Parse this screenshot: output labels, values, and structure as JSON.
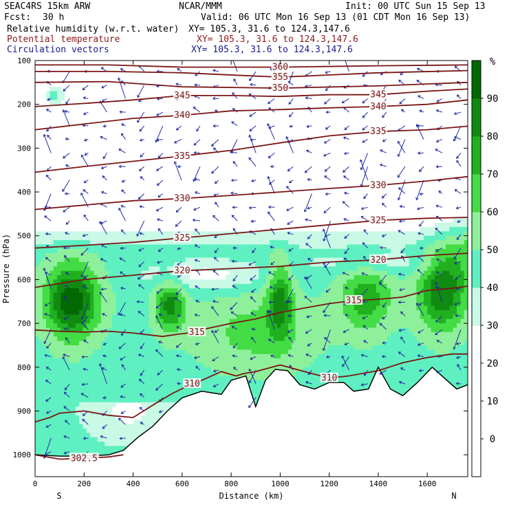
{
  "header": {
    "model": "SEAC4RS 15km ARW",
    "org": "NCAR/MMM",
    "init": "Init: 00 UTC Sun 15 Sep 13",
    "fcst_label": "Fcst:",
    "fcst_value": "30 h",
    "valid": "Valid: 06 UTC Mon 16 Sep 13 (01 CDT Mon 16 Sep 13)",
    "fields": [
      {
        "name": "Relative humidity (w.r.t. water)",
        "xy": "XY= 105.3, 31.6 to 124.3,147.6",
        "color": "#000000"
      },
      {
        "name": "Potential temperature",
        "xy": "XY= 105.3, 31.6 to 124.3,147.6",
        "color": "#8b1a1a"
      },
      {
        "name": "Circulation vectors",
        "xy": "XY= 105.3, 31.6 to 124.3,147.6",
        "color": "#1a1a8b"
      }
    ]
  },
  "colors": {
    "theta": "#7a1414",
    "vector": "#1f2aa0",
    "rh": [
      "#ffffff",
      "#ffffff",
      "#ffffff",
      "#ffffff",
      "#c8fae6",
      "#5ef0c0",
      "#8ef09a",
      "#44dc44",
      "#20b020",
      "#108a10",
      "#036903"
    ]
  },
  "chart_data": {
    "type": "heatmap",
    "subtype": "vertical cross-section with contours and vectors",
    "xlabel": "Distance (km)",
    "ylabel": "Pressure (hPa)",
    "x_ticks": [
      0,
      200,
      400,
      600,
      800,
      1000,
      1200,
      1400,
      1600
    ],
    "y_ticks": [
      100,
      200,
      300,
      400,
      500,
      600,
      700,
      800,
      900,
      1000
    ],
    "xlim": [
      0,
      1765
    ],
    "ylim": [
      100,
      1050
    ],
    "y_scale": "linear, inverted",
    "x_end_labels": {
      "left": "S",
      "right": "N"
    },
    "colorbar": {
      "unit": "%",
      "ticks": [
        0,
        10,
        20,
        30,
        40,
        50,
        60,
        70,
        80,
        90
      ],
      "levels": [
        -10,
        0,
        10,
        20,
        30,
        40,
        50,
        60,
        70,
        80,
        90,
        100
      ]
    },
    "theta_contours": [
      {
        "value": 360,
        "points": [
          [
            0,
            110
          ],
          [
            300,
            110
          ],
          [
            600,
            115
          ],
          [
            1000,
            115
          ],
          [
            1400,
            112
          ],
          [
            1765,
            110
          ]
        ]
      },
      {
        "value": 355,
        "points": [
          [
            0,
            125
          ],
          [
            300,
            125
          ],
          [
            600,
            128
          ],
          [
            1000,
            138
          ],
          [
            1400,
            128
          ],
          [
            1765,
            123
          ]
        ]
      },
      {
        "value": 350,
        "points": [
          [
            0,
            150
          ],
          [
            300,
            148
          ],
          [
            600,
            160
          ],
          [
            1000,
            163
          ],
          [
            1400,
            158
          ],
          [
            1765,
            150
          ]
        ]
      },
      {
        "value": 345,
        "points": [
          [
            0,
            205
          ],
          [
            200,
            198
          ],
          [
            400,
            190
          ],
          [
            600,
            180
          ],
          [
            800,
            180
          ],
          [
            1000,
            182
          ],
          [
            1200,
            178
          ],
          [
            1400,
            178
          ],
          [
            1600,
            170
          ],
          [
            1765,
            165
          ]
        ]
      },
      {
        "value": 340,
        "points": [
          [
            0,
            258
          ],
          [
            200,
            245
          ],
          [
            400,
            232
          ],
          [
            600,
            225
          ],
          [
            800,
            215
          ],
          [
            1000,
            212
          ],
          [
            1200,
            208
          ],
          [
            1400,
            205
          ],
          [
            1600,
            200
          ],
          [
            1765,
            190
          ]
        ]
      },
      {
        "value": 335,
        "points": [
          [
            0,
            355
          ],
          [
            200,
            342
          ],
          [
            400,
            330
          ],
          [
            600,
            318
          ],
          [
            800,
            305
          ],
          [
            1000,
            288
          ],
          [
            1200,
            272
          ],
          [
            1400,
            262
          ],
          [
            1600,
            258
          ],
          [
            1765,
            250
          ]
        ]
      },
      {
        "value": 330,
        "points": [
          [
            0,
            440
          ],
          [
            200,
            430
          ],
          [
            400,
            420
          ],
          [
            600,
            415
          ],
          [
            800,
            408
          ],
          [
            1000,
            400
          ],
          [
            1200,
            392
          ],
          [
            1400,
            385
          ],
          [
            1600,
            375
          ],
          [
            1765,
            365
          ]
        ]
      },
      {
        "value": 325,
        "points": [
          [
            0,
            528
          ],
          [
            200,
            522
          ],
          [
            400,
            515
          ],
          [
            600,
            505
          ],
          [
            800,
            495
          ],
          [
            1000,
            485
          ],
          [
            1200,
            475
          ],
          [
            1400,
            465
          ],
          [
            1600,
            460
          ],
          [
            1765,
            458
          ]
        ]
      },
      {
        "value": 320,
        "points": [
          [
            0,
            618
          ],
          [
            200,
            600
          ],
          [
            400,
            590
          ],
          [
            600,
            580
          ],
          [
            800,
            575
          ],
          [
            1000,
            570
          ],
          [
            1200,
            560
          ],
          [
            1400,
            555
          ],
          [
            1600,
            545
          ],
          [
            1765,
            540
          ]
        ]
      },
      {
        "value": 315,
        "points": [
          [
            0,
            715
          ],
          [
            100,
            718
          ],
          [
            200,
            720
          ],
          [
            300,
            718
          ],
          [
            400,
            722
          ],
          [
            520,
            730
          ],
          [
            580,
            725
          ],
          [
            660,
            720
          ],
          [
            700,
            712
          ],
          [
            800,
            700
          ],
          [
            900,
            690
          ],
          [
            1000,
            675
          ],
          [
            1100,
            665
          ],
          [
            1200,
            655
          ],
          [
            1300,
            648
          ],
          [
            1400,
            645
          ],
          [
            1500,
            640
          ],
          [
            1600,
            625
          ],
          [
            1700,
            620
          ],
          [
            1765,
            615
          ]
        ]
      },
      {
        "value": 310,
        "points": [
          [
            0,
            925
          ],
          [
            60,
            915
          ],
          [
            100,
            905
          ],
          [
            200,
            900
          ],
          [
            300,
            910
          ],
          [
            400,
            915
          ],
          [
            500,
            880
          ],
          [
            560,
            860
          ],
          [
            640,
            838
          ],
          [
            680,
            830
          ],
          [
            760,
            810
          ],
          [
            820,
            820
          ],
          [
            850,
            815
          ],
          [
            900,
            810
          ],
          [
            1000,
            795
          ],
          [
            1100,
            810
          ],
          [
            1200,
            825
          ],
          [
            1280,
            820
          ],
          [
            1400,
            808
          ],
          [
            1500,
            790
          ],
          [
            1600,
            778
          ],
          [
            1700,
            770
          ],
          [
            1765,
            770
          ]
        ]
      },
      {
        "value": 302.5,
        "points": [
          [
            0,
            1000
          ],
          [
            100,
            1010
          ],
          [
            200,
            1008
          ],
          [
            300,
            1005
          ],
          [
            360,
            1000
          ]
        ]
      }
    ],
    "terrain_pressure": [
      [
        0,
        1000
      ],
      [
        100,
        1003
      ],
      [
        200,
        1003
      ],
      [
        300,
        1000
      ],
      [
        360,
        990
      ],
      [
        420,
        960
      ],
      [
        480,
        935
      ],
      [
        540,
        900
      ],
      [
        600,
        870
      ],
      [
        680,
        855
      ],
      [
        760,
        862
      ],
      [
        800,
        830
      ],
      [
        860,
        820
      ],
      [
        900,
        890
      ],
      [
        940,
        830
      ],
      [
        980,
        805
      ],
      [
        1030,
        808
      ],
      [
        1080,
        840
      ],
      [
        1140,
        850
      ],
      [
        1200,
        835
      ],
      [
        1260,
        835
      ],
      [
        1300,
        855
      ],
      [
        1360,
        850
      ],
      [
        1400,
        800
      ],
      [
        1450,
        850
      ],
      [
        1500,
        865
      ],
      [
        1560,
        835
      ],
      [
        1620,
        800
      ],
      [
        1680,
        830
      ],
      [
        1720,
        850
      ],
      [
        1765,
        840
      ]
    ]
  }
}
